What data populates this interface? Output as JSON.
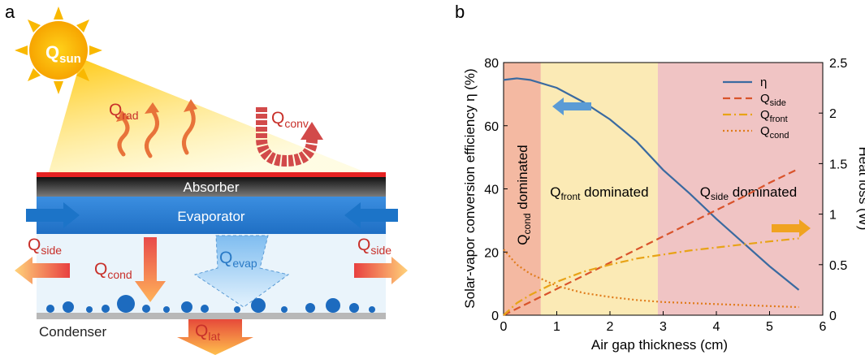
{
  "diagram": {
    "panel_label": "a",
    "q_sun": {
      "q": "Q",
      "sub": "sun"
    },
    "q_rad": {
      "q": "Q",
      "sub": "rad"
    },
    "q_conv": {
      "q": "Q",
      "sub": "conv"
    },
    "absorber": "Absorber",
    "evaporator": "Evaporator",
    "q_side_left": {
      "q": "Q",
      "sub": "side"
    },
    "q_side_right": {
      "q": "Q",
      "sub": "side"
    },
    "q_cond": {
      "q": "Q",
      "sub": "cond"
    },
    "q_evap": {
      "q": "Q",
      "sub": "evap"
    },
    "condenser": "Condenser",
    "q_lat": {
      "q": "Q",
      "sub": "lat"
    }
  },
  "chart_data": {
    "type": "line",
    "panel_label": "b",
    "x_label": "Air gap thickness (cm)",
    "y_label": "Solar-vapor conversion efficiency η (%)",
    "y2_label": "Heat loss (W)",
    "xlim": [
      0,
      6
    ],
    "xticks": [
      0,
      1,
      2,
      3,
      4,
      5,
      6
    ],
    "ylim": [
      0,
      80
    ],
    "yticks": [
      0,
      20,
      40,
      60,
      80
    ],
    "y2lim": [
      0,
      2.5
    ],
    "y2ticks": [
      0,
      0.5,
      1,
      1.5,
      2,
      2.5
    ],
    "legend": "top-right",
    "regions": [
      {
        "from": 0,
        "to": 0.7,
        "color": "#f4b9a2",
        "label": {
          "q": "Q",
          "sub": "cond",
          "rest": " dominated"
        }
      },
      {
        "from": 0.7,
        "to": 2.9,
        "color": "#fbeab5",
        "label": {
          "q": "Q",
          "sub": "front",
          "rest": " dominated"
        }
      },
      {
        "from": 2.9,
        "to": 6,
        "color": "#f0c4c4",
        "label": {
          "q": "Q",
          "sub": "side",
          "rest": " dominated"
        }
      }
    ],
    "x": [
      0,
      0.25,
      0.5,
      1,
      1.5,
      2,
      2.5,
      3,
      3.5,
      4,
      4.5,
      5,
      5.55
    ],
    "series": [
      {
        "name": "η",
        "color": "#3a6aa0",
        "style": "solid",
        "axis": "y",
        "values": [
          74.5,
          75,
          74.5,
          72,
          67.5,
          62,
          55,
          46,
          38.5,
          30.5,
          23,
          15.5,
          8
        ]
      },
      {
        "name": "Q",
        "name_sub": "side",
        "color": "#d9532b",
        "style": "dashed",
        "axis": "y2",
        "values": [
          0,
          0.065,
          0.13,
          0.26,
          0.39,
          0.52,
          0.65,
          0.78,
          0.91,
          1.04,
          1.17,
          1.31,
          1.45
        ]
      },
      {
        "name": "Q",
        "name_sub": "front",
        "color": "#e8a317",
        "style": "dashdot",
        "axis": "y2",
        "values": [
          0,
          0.12,
          0.2,
          0.33,
          0.43,
          0.5,
          0.56,
          0.6,
          0.64,
          0.67,
          0.7,
          0.73,
          0.76
        ]
      },
      {
        "name": "Q",
        "name_sub": "cond",
        "color": "#e07b1a",
        "style": "dotted",
        "axis": "y2",
        "values": [
          0.65,
          0.5,
          0.41,
          0.29,
          0.22,
          0.18,
          0.15,
          0.13,
          0.12,
          0.11,
          0.1,
          0.09,
          0.08
        ]
      }
    ]
  }
}
